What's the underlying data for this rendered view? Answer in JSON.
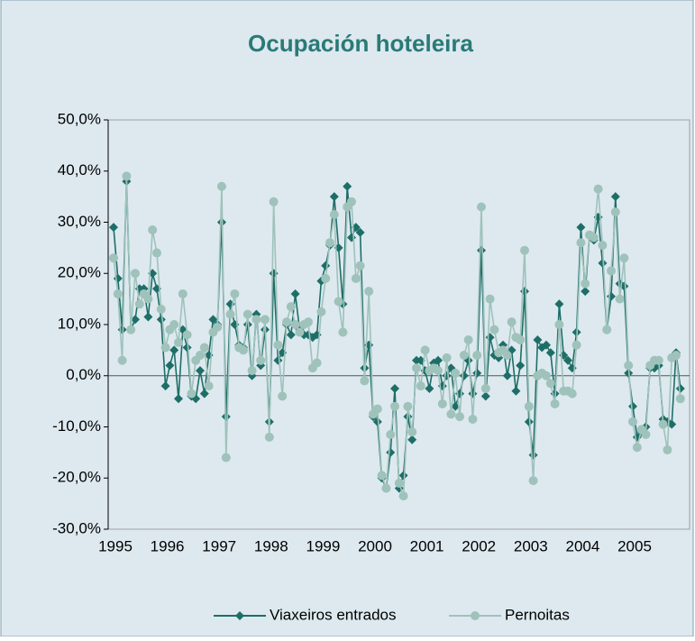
{
  "chart_data": {
    "type": "line",
    "title": "Ocupación hoteleira",
    "categories": [
      "1995",
      null,
      null,
      null,
      null,
      null,
      null,
      null,
      null,
      null,
      null,
      null,
      "1996",
      null,
      null,
      null,
      null,
      null,
      null,
      null,
      null,
      null,
      null,
      null,
      "1997",
      null,
      null,
      null,
      null,
      null,
      null,
      null,
      null,
      null,
      null,
      null,
      "1998",
      null,
      null,
      null,
      null,
      null,
      null,
      null,
      null,
      null,
      null,
      null,
      "1999",
      null,
      null,
      null,
      null,
      null,
      null,
      null,
      null,
      null,
      null,
      null,
      "2000",
      null,
      null,
      null,
      null,
      null,
      null,
      null,
      null,
      null,
      null,
      null,
      "2001",
      null,
      null,
      null,
      null,
      null,
      null,
      null,
      null,
      null,
      null,
      null,
      "2002",
      null,
      null,
      null,
      null,
      null,
      null,
      null,
      null,
      null,
      null,
      null,
      "2003",
      null,
      null,
      null,
      null,
      null,
      null,
      null,
      null,
      null,
      null,
      null,
      "2004",
      null,
      null,
      null,
      null,
      null,
      null,
      null,
      null,
      null,
      null,
      null,
      "2005",
      null,
      null,
      null,
      null,
      null,
      null,
      null,
      null,
      null,
      null,
      null
    ],
    "series": [
      {
        "name": "Viaxeiros entrados",
        "color": "#1e6e68",
        "marker": "diamond",
        "values": [
          29,
          19,
          9,
          38,
          9,
          11,
          17,
          17,
          11.5,
          20,
          17,
          11,
          -2,
          2,
          5,
          -4.5,
          9,
          5.5,
          -4,
          -4.5,
          1,
          -3.5,
          4,
          11,
          10,
          30,
          -8,
          14,
          10,
          6,
          5.5,
          10,
          0,
          12,
          2,
          9,
          -9,
          20,
          3,
          4.5,
          10,
          8,
          16,
          9,
          8,
          8,
          7.5,
          8,
          18.5,
          21.5,
          25.5,
          35,
          25,
          14,
          37,
          27,
          29,
          28,
          1.5,
          6,
          -8,
          -9,
          -20,
          -22,
          -15,
          -2.5,
          -22,
          -19.5,
          -8,
          -12.5,
          3,
          3,
          1,
          -2.5,
          2.5,
          3,
          -2,
          0,
          1.5,
          -6,
          -3.5,
          0,
          3,
          -3.5,
          0.5,
          24.5,
          -4,
          7.5,
          4,
          3.5,
          6,
          0,
          5,
          -3,
          2,
          16.5,
          -9,
          -15.5,
          7,
          5.5,
          6,
          4.5,
          -3.5,
          14,
          4,
          3,
          1.5,
          8.5,
          29,
          16.5,
          27.5,
          26.5,
          31,
          22,
          9,
          15.5,
          35,
          18,
          17.5,
          0.5,
          -6,
          -12,
          -11,
          -10,
          1.5,
          1.5,
          2,
          -8.5,
          -9,
          -9.5,
          4.5,
          -2.5
        ]
      },
      {
        "name": "Pernoitas",
        "color": "#9fc2bb",
        "marker": "circle",
        "values": [
          23,
          16,
          3,
          39,
          9,
          20,
          14,
          16,
          15,
          28.5,
          24,
          13,
          5.5,
          9,
          10,
          6.5,
          16,
          8,
          -3.5,
          3,
          4,
          5.5,
          -2,
          8.5,
          9.5,
          37,
          -16,
          12,
          16,
          5.5,
          5,
          12,
          1,
          11,
          3,
          11,
          -12,
          34,
          6,
          -4,
          10.5,
          13.5,
          10,
          8.5,
          10,
          10.5,
          1.5,
          2.5,
          12.5,
          19,
          26,
          31.5,
          14.5,
          8.5,
          33,
          34,
          19,
          21.5,
          -1,
          16.5,
          -7.5,
          -6.5,
          -19.5,
          -22,
          -11.5,
          -6,
          -21,
          -23.5,
          -6,
          -11,
          1.5,
          -2,
          5,
          1,
          1.5,
          1,
          -5.5,
          3.5,
          -7.5,
          0.5,
          -8,
          4,
          7,
          -8.5,
          4,
          33,
          -2.5,
          15,
          9,
          4.5,
          5,
          4,
          10.5,
          7.5,
          7,
          24.5,
          -6,
          -20.5,
          0,
          0.5,
          0,
          -1.5,
          -5.5,
          10,
          -3,
          -3,
          -3.5,
          6,
          26,
          18,
          27.5,
          27,
          36.5,
          25.5,
          9,
          20.5,
          32,
          15,
          23,
          2,
          -9,
          -14,
          -10.5,
          -11.5,
          2,
          3,
          3,
          -9.5,
          -14.5,
          3.5,
          4,
          -4.5
        ]
      }
    ],
    "ylim": [
      -30,
      50
    ],
    "yticks": [
      {
        "value": -30,
        "label": "-30,0%"
      },
      {
        "value": -20,
        "label": "-20,0%"
      },
      {
        "value": -10,
        "label": "-10,0%"
      },
      {
        "value": 0,
        "label": "0,0%"
      },
      {
        "value": 10,
        "label": "10,0%"
      },
      {
        "value": 20,
        "label": "20,0%"
      },
      {
        "value": 30,
        "label": "30,0%"
      },
      {
        "value": 40,
        "label": "40,0%"
      },
      {
        "value": 50,
        "label": "50,0%"
      }
    ],
    "grid": false,
    "legend": "bottom"
  }
}
